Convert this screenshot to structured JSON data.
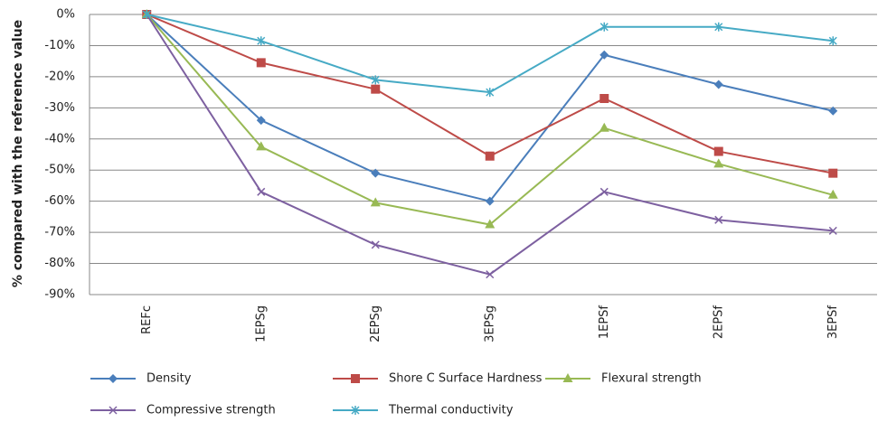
{
  "chart_data": {
    "type": "line",
    "y_label": "% compared with the reference value",
    "categories": [
      "REFc",
      "1EPSg",
      "2EPSg",
      "3EPSg",
      "1EPSf",
      "2EPSf",
      "3EPSf"
    ],
    "series": [
      {
        "name": "Density",
        "color": "#4a7ebb",
        "marker": "diamond",
        "values": [
          0,
          -34,
          -51,
          -60,
          -13,
          -22.5,
          -31
        ]
      },
      {
        "name": "Shore C Surface Hardness",
        "color": "#be4b48",
        "marker": "square",
        "values": [
          0,
          -15.5,
          -24,
          -45.5,
          -27,
          -44,
          -51
        ]
      },
      {
        "name": "Flexural strength",
        "color": "#98b954",
        "marker": "triangle",
        "values": [
          0,
          -42.5,
          -60.5,
          -67.5,
          -36.5,
          -48,
          -58
        ]
      },
      {
        "name": "Compressive strength",
        "color": "#7d60a0",
        "marker": "x",
        "values": [
          0,
          -57,
          -74,
          -83.5,
          -57,
          -66,
          -69.5
        ]
      },
      {
        "name": "Thermal conductivity",
        "color": "#46aac5",
        "marker": "asterisk",
        "values": [
          0,
          -8.5,
          -21,
          -25,
          -4,
          -4,
          -8.5
        ]
      }
    ],
    "ylim": [
      -90,
      0
    ],
    "yticks": [
      {
        "value": 0,
        "label": "0%"
      },
      {
        "value": -10,
        "label": "-10%"
      },
      {
        "value": -20,
        "label": "-20%"
      },
      {
        "value": -30,
        "label": "-30%"
      },
      {
        "value": -40,
        "label": "-40%"
      },
      {
        "value": -50,
        "label": "-50%"
      },
      {
        "value": -60,
        "label": "-60%"
      },
      {
        "value": -70,
        "label": "-70%"
      },
      {
        "value": -80,
        "label": "-80%"
      },
      {
        "value": -90,
        "label": "-90%"
      }
    ],
    "grid": true,
    "legend": "bottom"
  }
}
